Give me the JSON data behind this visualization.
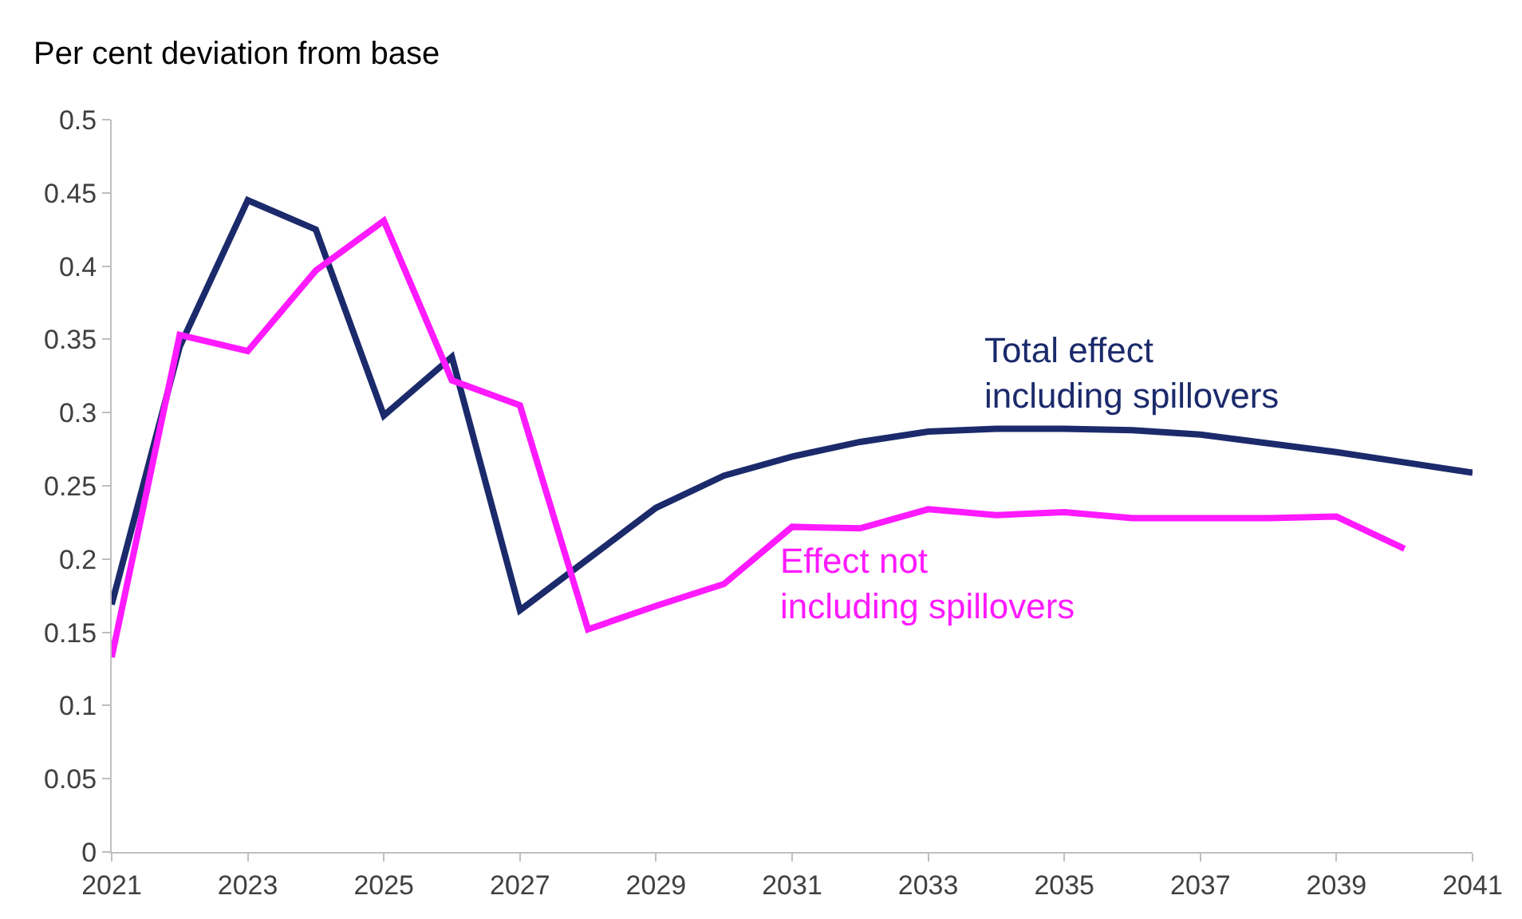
{
  "chart_data": {
    "type": "line",
    "ylabel": "Per cent deviation from base",
    "x": [
      2021,
      2022,
      2023,
      2024,
      2025,
      2026,
      2027,
      2028,
      2029,
      2030,
      2031,
      2032,
      2033,
      2034,
      2035,
      2036,
      2037,
      2038,
      2039,
      2040,
      2041
    ],
    "series": [
      {
        "name": "Total effect\nincluding spillovers",
        "color": "#1b2a6b",
        "values": [
          0.169,
          0.345,
          0.445,
          0.425,
          0.298,
          0.338,
          0.165,
          0.2,
          0.235,
          0.257,
          0.27,
          0.28,
          0.287,
          0.289,
          0.289,
          0.288,
          0.285,
          0.279,
          0.273,
          0.266,
          0.259
        ]
      },
      {
        "name": "Effect not\nincluding spillovers",
        "color": "#ff1aff",
        "values": [
          0.133,
          0.353,
          0.342,
          0.397,
          0.431,
          0.322,
          0.305,
          0.152,
          0.168,
          0.183,
          0.222,
          0.221,
          0.234,
          0.23,
          0.232,
          0.228,
          0.228,
          0.228,
          0.229,
          0.207,
          null
        ]
      }
    ],
    "xlim": [
      2021,
      2041
    ],
    "xticks": [
      2021,
      2023,
      2025,
      2027,
      2029,
      2031,
      2033,
      2035,
      2037,
      2039,
      2041
    ],
    "ylim": [
      0,
      0.5
    ],
    "yticks": [
      0,
      0.05,
      0.1,
      0.15,
      0.2,
      0.25,
      0.3,
      0.35,
      0.4,
      0.45,
      0.5
    ],
    "legend": false,
    "marker": "none",
    "line_style": "solid"
  }
}
